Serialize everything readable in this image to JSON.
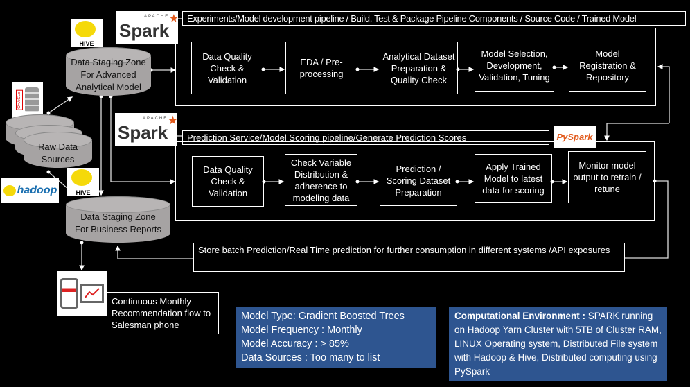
{
  "training_pipeline": {
    "title": "Experiments/Model development pipeline / Build, Test & Package Pipeline Components / Source Code / Trained Model",
    "steps": [
      "Data Quality Check & Validation",
      "EDA / Pre-processing",
      "Analytical Dataset Preparation & Quality Check",
      "Model Selection, Development, Validation, Tuning",
      "Model Registration & Repository"
    ]
  },
  "scoring_pipeline": {
    "title": "Prediction Service/Model Scoring pipeline/Generate Prediction Scores",
    "steps": [
      "Data Quality Check & Validation",
      "Check Variable Distribution & adherence to modeling data",
      "Prediction / Scoring Dataset Preparation",
      "Apply Trained Model to latest data for scoring",
      "Monitor model output to retrain / retune"
    ]
  },
  "stores": {
    "staging_advanced": "Data Staging Zone For Advanced Analytical Model",
    "raw_sources": "Raw Data Sources",
    "staging_reports": "Data Staging Zone For Business Reports"
  },
  "logos": {
    "spark": "Spark",
    "spark_small": "APACHE",
    "pyspark": "PySpark",
    "hive": "HIVE",
    "hadoop": "hadoop",
    "oracle": "ORACLE"
  },
  "store_batch": "Store batch Prediction/Real Time prediction for further consumption in different systems /API exposures",
  "recommendation": "Continuous Monthly Recommendation flow to Salesman phone",
  "model_info": [
    "Model Type: Gradient Boosted Trees",
    "Model Frequency : Monthly",
    "Model Accuracy : > 85%",
    "Data Sources : Too many to list"
  ],
  "environment": {
    "heading": "Computational Environment :",
    "text": " SPARK running on Hadoop Yarn Cluster with 5TB of Cluster RAM, LINUX Operating system, Distributed File system with Hadoop & Hive, Distributed computing using PySpark"
  },
  "colors": {
    "info_bg": "#2e5590",
    "spark_orange": "#e25a1c",
    "cylinder": "#a6a3a3"
  }
}
